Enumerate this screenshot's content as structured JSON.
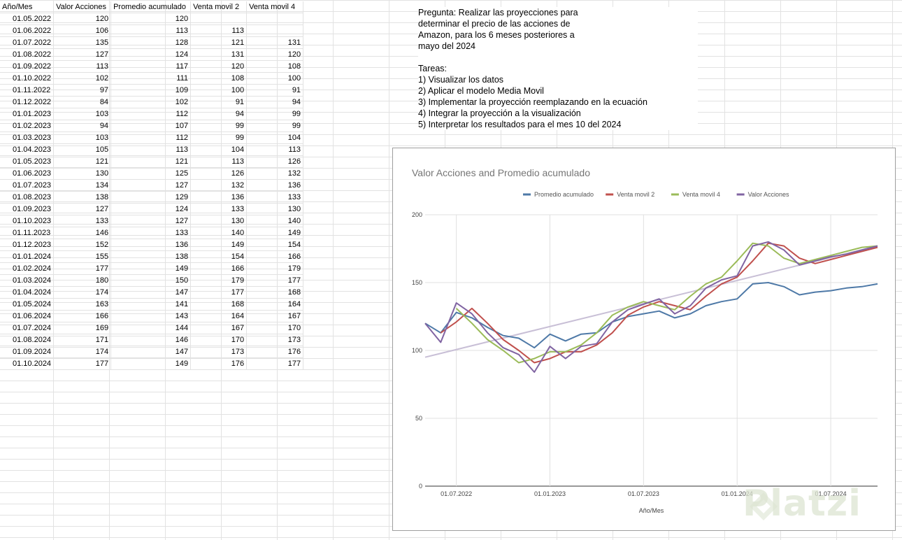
{
  "sheet": {
    "headers": [
      "Año/Mes",
      "Valor Acciones",
      "Promedio acumulado",
      "Venta movil 2",
      "Venta movil 4"
    ],
    "rows": [
      [
        "01.05.2022",
        "120",
        "120",
        "",
        ""
      ],
      [
        "01.06.2022",
        "106",
        "113",
        "113",
        ""
      ],
      [
        "01.07.2022",
        "135",
        "128",
        "121",
        "131"
      ],
      [
        "01.08.2022",
        "127",
        "124",
        "131",
        "120"
      ],
      [
        "01.09.2022",
        "113",
        "117",
        "120",
        "108"
      ],
      [
        "01.10.2022",
        "102",
        "111",
        "108",
        "100"
      ],
      [
        "01.11.2022",
        "97",
        "109",
        "100",
        "91"
      ],
      [
        "01.12.2022",
        "84",
        "102",
        "91",
        "94"
      ],
      [
        "01.01.2023",
        "103",
        "112",
        "94",
        "99"
      ],
      [
        "01.02.2023",
        "94",
        "107",
        "99",
        "99"
      ],
      [
        "01.03.2023",
        "103",
        "112",
        "99",
        "104"
      ],
      [
        "01.04.2023",
        "105",
        "113",
        "104",
        "113"
      ],
      [
        "01.05.2023",
        "121",
        "121",
        "113",
        "126"
      ],
      [
        "01.06.2023",
        "130",
        "125",
        "126",
        "132"
      ],
      [
        "01.07.2023",
        "134",
        "127",
        "132",
        "136"
      ],
      [
        "01.08.2023",
        "138",
        "129",
        "136",
        "133"
      ],
      [
        "01.09.2023",
        "127",
        "124",
        "133",
        "130"
      ],
      [
        "01.10.2023",
        "133",
        "127",
        "130",
        "140"
      ],
      [
        "01.11.2023",
        "146",
        "133",
        "140",
        "149"
      ],
      [
        "01.12.2023",
        "152",
        "136",
        "149",
        "154"
      ],
      [
        "01.01.2024",
        "155",
        "138",
        "154",
        "166"
      ],
      [
        "01.02.2024",
        "177",
        "149",
        "166",
        "179"
      ],
      [
        "01.03.2024",
        "180",
        "150",
        "179",
        "177"
      ],
      [
        "01.04.2024",
        "174",
        "147",
        "177",
        "168"
      ],
      [
        "01.05.2024",
        "163",
        "141",
        "168",
        "164"
      ],
      [
        "01.06.2024",
        "166",
        "143",
        "164",
        "167"
      ],
      [
        "01.07.2024",
        "169",
        "144",
        "167",
        "170"
      ],
      [
        "01.08.2024",
        "171",
        "146",
        "170",
        "173"
      ],
      [
        "01.09.2024",
        "174",
        "147",
        "173",
        "176"
      ],
      [
        "01.10.2024",
        "177",
        "149",
        "176",
        "177"
      ]
    ]
  },
  "question": {
    "pregunta": "Pregunta: Realizar las proyecciones para determinar el precio de las acciones  de Amazon, para los 6 meses posteriores a mayo del 2024",
    "tareas_title": "Tareas:",
    "tareas": [
      "1) Visualizar los datos",
      "2) Aplicar el modelo Media Movil",
      "3) Implementar la proyección reemplazando en la ecuación",
      "4) Integrar la proyección a la visualización",
      "5) Interpretar los resultados para el mes 10 del 2024"
    ]
  },
  "chart_data": {
    "type": "line",
    "title": "Valor Acciones and Promedio acumulado",
    "xlabel": "Año/Mes",
    "ylabel": "",
    "ylim": [
      0,
      200
    ],
    "yticks": [
      "0",
      "50",
      "100",
      "150",
      "200"
    ],
    "xticks": [
      {
        "index": 2,
        "label": "01.07.2022"
      },
      {
        "index": 8,
        "label": "01.01.2023"
      },
      {
        "index": 14,
        "label": "01.07.2023"
      },
      {
        "index": 20,
        "label": "01.01.2024"
      },
      {
        "index": 26,
        "label": "01.07.2024"
      }
    ],
    "grid": true,
    "legend_position": "top",
    "x": [
      "01.05.2022",
      "01.06.2022",
      "01.07.2022",
      "01.08.2022",
      "01.09.2022",
      "01.10.2022",
      "01.11.2022",
      "01.12.2022",
      "01.01.2023",
      "01.02.2023",
      "01.03.2023",
      "01.04.2023",
      "01.05.2023",
      "01.06.2023",
      "01.07.2023",
      "01.08.2023",
      "01.09.2023",
      "01.10.2023",
      "01.11.2023",
      "01.12.2023",
      "01.01.2024",
      "01.02.2024",
      "01.03.2024",
      "01.04.2024",
      "01.05.2024",
      "01.06.2024",
      "01.07.2024",
      "01.08.2024",
      "01.09.2024",
      "01.10.2024"
    ],
    "series": [
      {
        "name": "Promedio acumulado",
        "color": "#4e79a7",
        "values": [
          120,
          113,
          128,
          124,
          117,
          111,
          109,
          102,
          112,
          107,
          112,
          113,
          121,
          125,
          127,
          129,
          124,
          127,
          133,
          136,
          138,
          149,
          150,
          147,
          141,
          143,
          144,
          146,
          147,
          149
        ]
      },
      {
        "name": "Venta movil 2",
        "color": "#c0504d",
        "values": [
          null,
          113,
          121,
          131,
          120,
          108,
          100,
          91,
          94,
          99,
          99,
          104,
          113,
          126,
          132,
          136,
          133,
          130,
          140,
          149,
          154,
          166,
          179,
          177,
          168,
          164,
          167,
          170,
          173,
          176
        ]
      },
      {
        "name": "Venta movil 4",
        "color": "#9bbb59",
        "values": [
          null,
          null,
          131,
          120,
          108,
          100,
          91,
          94,
          99,
          99,
          104,
          113,
          126,
          132,
          136,
          133,
          130,
          140,
          149,
          154,
          166,
          179,
          177,
          168,
          164,
          167,
          170,
          173,
          176,
          177
        ]
      },
      {
        "name": "Valor Acciones",
        "color": "#8064a2",
        "values": [
          120,
          106,
          135,
          127,
          113,
          102,
          97,
          84,
          103,
          94,
          103,
          105,
          121,
          130,
          134,
          138,
          127,
          133,
          146,
          152,
          155,
          177,
          180,
          174,
          163,
          166,
          169,
          171,
          174,
          177
        ]
      }
    ],
    "trendline": {
      "color": "#c8bfd6",
      "values": [
        95,
        177
      ]
    }
  },
  "watermark": {
    "text": "Platzi"
  }
}
